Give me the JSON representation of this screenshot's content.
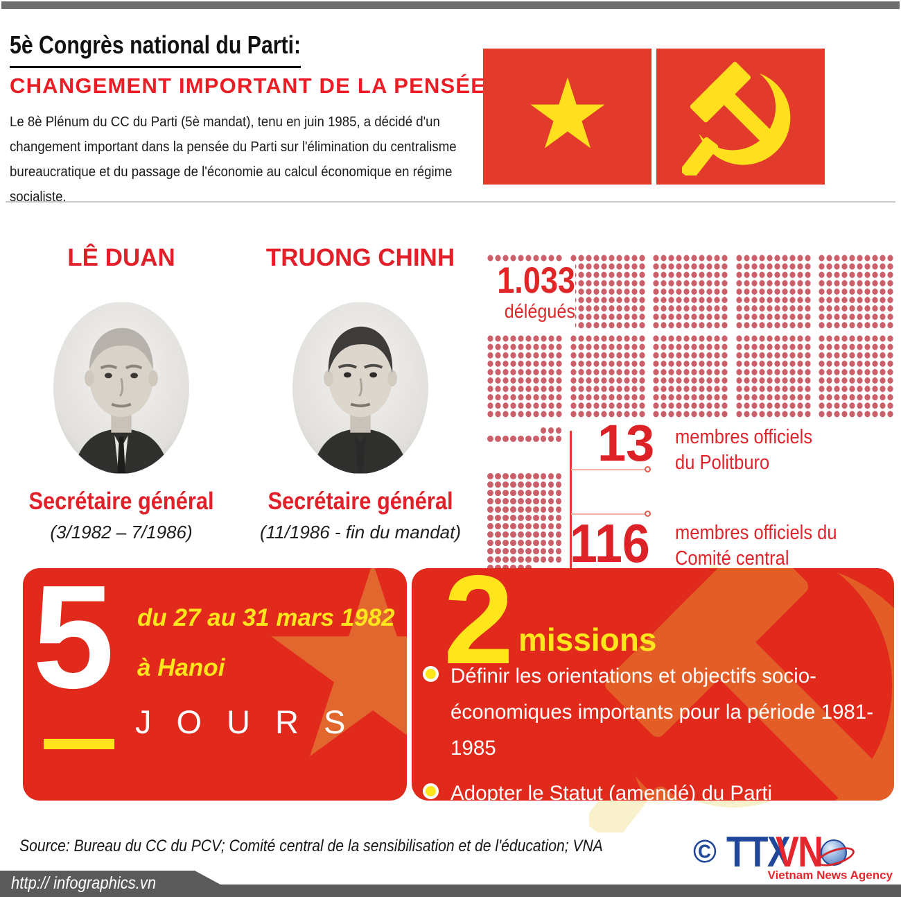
{
  "header": {
    "title": "5è Congrès national du Parti:",
    "subtitle": "CHANGEMENT IMPORTANT DE LA PENSÉE",
    "paragraph": "Le 8è Plénum du CC du Parti (5è mandat), tenu en juin 1985, a décidé d'un changement important dans la pensée du Parti sur l'élimination du centralisme bureaucratique et du passage de l'économie au calcul économique en régime socialiste."
  },
  "icons": {
    "flag1": "vietnam-flag-star",
    "flag2": "hammer-sickle-party-flag",
    "bullet": "bullet-icon",
    "globe": "globe-icon",
    "copyright": "copyright-icon"
  },
  "leaders": [
    {
      "name": "LÊ DUAN",
      "role": "Secrétaire général",
      "term": "(3/1982 – 7/1986)"
    },
    {
      "name": "TRUONG CHINH",
      "role": "Secrétaire général",
      "term": "(11/1986 - fin du mandat)"
    }
  ],
  "stats": {
    "delegates": {
      "value": "1.033",
      "label": "délégués",
      "count": 1033
    },
    "politburo": {
      "value": "13",
      "count": 13,
      "label_lines": [
        "membres officiels",
        "du Politburo"
      ]
    },
    "central_committee": {
      "value": "116",
      "count": 116,
      "label_lines": [
        "membres officiels du",
        "Comité central"
      ]
    }
  },
  "duration": {
    "number": "5",
    "unit": "JOURS",
    "date_range": "du 27 au 31 mars 1982",
    "location": "à Hanoi"
  },
  "missions": {
    "number": "2",
    "label": "missions",
    "items": [
      "Définir les orientations et objectifs socio-économiques importants pour la période 1981-1985",
      "Adopter le Statut (amendé) du Parti"
    ]
  },
  "footer": {
    "source": "Source: Bureau du CC du PCV; Comité central de la sensibilisation et de l'éducation; VNA",
    "url": "http:// infographics.vn",
    "logo": {
      "copyright": "©",
      "ttx": "TTX",
      "vn": "VN",
      "tagline": "Vietnam News Agency"
    }
  },
  "colors": {
    "accent_red": "#ec1c24",
    "box_red": "#e1291c",
    "flag_red": "#e23b2c",
    "dot_rose": "#cb5f6a",
    "yellow": "#ffe61c",
    "star_orange": "#e2672f",
    "pale_watermark": "#f8f1cb",
    "logo_blue": "#21479b",
    "footer_gray": "#5a5a5a"
  },
  "chart_data": {
    "type": "pictograph",
    "title": "5è Congrès national du Parti: CHANGEMENT IMPORTANT DE LA PENSÉE",
    "series": [
      {
        "name": "délégués",
        "value": 1033
      },
      {
        "name": "membres officiels du Politburo",
        "value": 13
      },
      {
        "name": "membres officiels du Comité central",
        "value": 116
      },
      {
        "name": "jours (du 27 au 31 mars 1982 à Hanoi)",
        "value": 5
      },
      {
        "name": "missions",
        "value": 2
      }
    ],
    "legend_position": "none",
    "notes": "unit chart: one dot = one person"
  }
}
